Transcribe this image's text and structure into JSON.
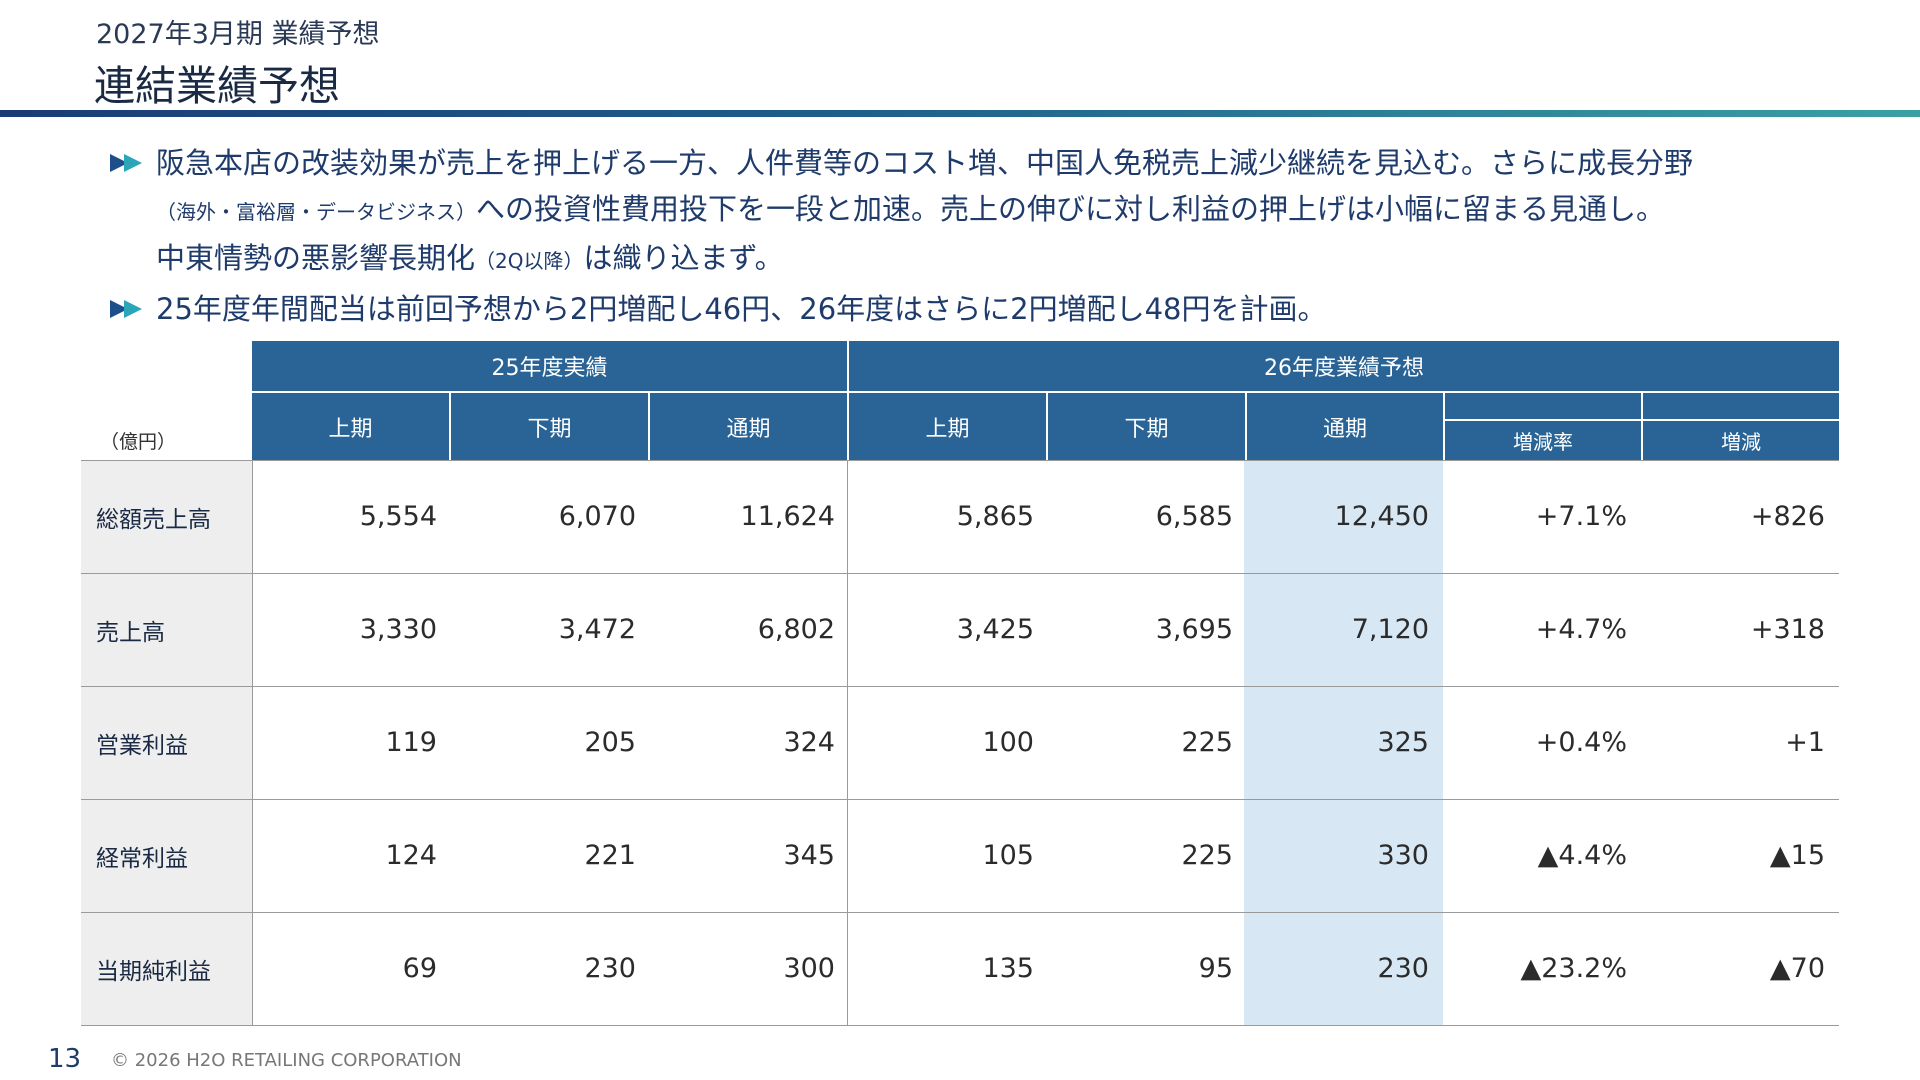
{
  "header": {
    "subtitle": "2027年3月期 業績予想",
    "title": "連結業績予想"
  },
  "bullets": [
    {
      "line1": "阪急本店の改装効果が売上を押上げる一方、人件費等のコスト増、中国人免税売上減少継続を見込む。さらに成長分野",
      "line2_small": "（海外・富裕層・データビジネス）",
      "line2": "への投資性費用投下を一段と加速。売上の伸びに対し利益の押上げは小幅に留まる見通し。",
      "line3a": "中東情勢の悪影響長期化",
      "line3_small": "（2Q以降）",
      "line3b": "は織り込まず。"
    },
    {
      "line1": "25年度年間配当は前回予想から2円増配し46円、26年度はさらに2円増配し48円を計画。"
    }
  ],
  "table": {
    "unit": "（億円）",
    "group_25": "25年度実績",
    "group_26": "26年度業績予想",
    "columns": [
      "上期",
      "下期",
      "通期",
      "上期",
      "下期",
      "通期",
      "増減率",
      "増減"
    ],
    "rows": [
      {
        "label": "総額売上高",
        "values": [
          "5,554",
          "6,070",
          "11,624",
          "5,865",
          "6,585",
          "12,450",
          "+7.1%",
          "+826"
        ]
      },
      {
        "label": "売上高",
        "values": [
          "3,330",
          "3,472",
          "6,802",
          "3,425",
          "3,695",
          "7,120",
          "+4.7%",
          "+318"
        ]
      },
      {
        "label": "営業利益",
        "values": [
          "119",
          "205",
          "324",
          "100",
          "225",
          "325",
          "+0.4%",
          "+1"
        ]
      },
      {
        "label": "経常利益",
        "values": [
          "124",
          "221",
          "345",
          "105",
          "225",
          "330",
          "▲4.4%",
          "▲15"
        ]
      },
      {
        "label": "当期純利益",
        "values": [
          "69",
          "230",
          "300",
          "135",
          "95",
          "230",
          "▲23.2%",
          "▲70"
        ]
      }
    ]
  },
  "footer": {
    "page_number": "13",
    "copyright": "© 2026 H2O RETAILING CORPORATION"
  },
  "colors": {
    "header_fill": "#2a6496",
    "highlight_column": "#d7e8f4",
    "label_column": "#eeeeee",
    "accent_teal": "#3aa0a4"
  }
}
